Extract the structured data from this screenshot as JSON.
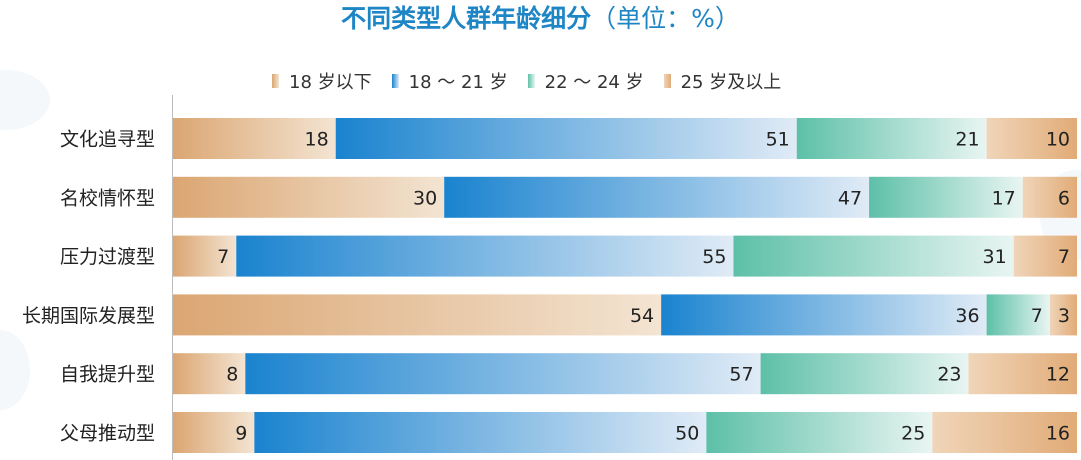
{
  "title": {
    "main": "不同类型人群年龄细分",
    "unit": "（单位：%）"
  },
  "chart_data": {
    "type": "bar",
    "orientation": "horizontal",
    "stacked": true,
    "title": "不同类型人群年龄细分（单位：%）",
    "categories": [
      "文化追寻型",
      "名校情怀型",
      "压力过渡型",
      "长期国际发展型",
      "自我提升型",
      "父母推动型"
    ],
    "series": [
      {
        "name": "18 岁以下",
        "values": [
          18,
          30,
          7,
          54,
          8,
          9
        ],
        "color": "#e2b384"
      },
      {
        "name": "18 ～ 21 岁",
        "values": [
          51,
          47,
          55,
          36,
          57,
          50
        ],
        "color": "#1c86cf"
      },
      {
        "name": "22 ～ 24 岁",
        "values": [
          21,
          17,
          31,
          7,
          23,
          25
        ],
        "color": "#7ccab7"
      },
      {
        "name": "25 岁及以上",
        "values": [
          10,
          6,
          7,
          3,
          12,
          16
        ],
        "color": "#e8b382"
      }
    ],
    "xlim": [
      0,
      100
    ],
    "legend_position": "top",
    "grid": false
  }
}
